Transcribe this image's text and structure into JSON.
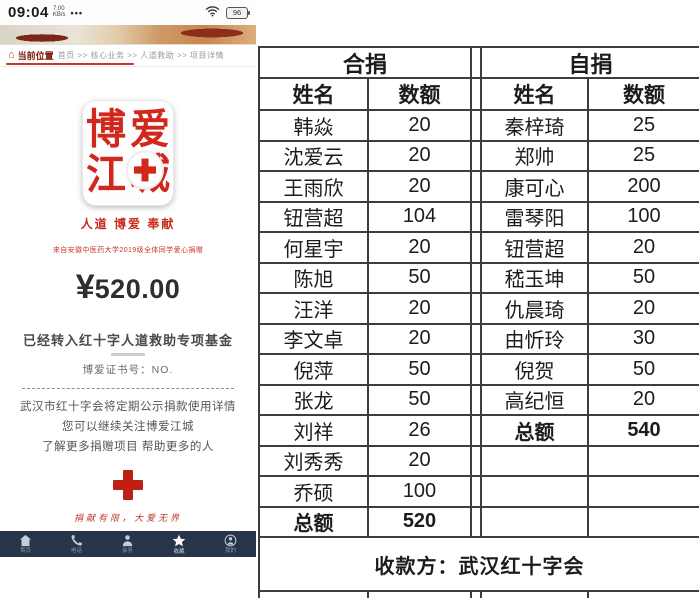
{
  "phone": {
    "status_bar": {
      "time": "09:04",
      "net_speed": "7.00",
      "net_unit": "KB/s",
      "dots": "•••",
      "battery_percent": "96"
    },
    "breadcrumb": {
      "home_icon": "house-icon",
      "label": "当前位置",
      "path": "首页 >> 核心业务 >> 人道救助 >> 项目详情"
    },
    "logo": {
      "chars": [
        "博",
        "爱",
        "江",
        "城"
      ],
      "center_icon": "red-cross-icon",
      "red": "#d0281c"
    },
    "slogan": "人道 博爱 奉献",
    "subnote": "来自安徽中医药大学2019级全体同学爱心捐赠",
    "amount": {
      "currency": "¥",
      "value": "520.00"
    },
    "fund_line": "已经转入红十字人道救助专项基金",
    "cert_line": "博爱证书号：NO.",
    "info_lines": [
      "武汉市红十字会将定期公示捐款使用详情",
      "您可以继续关注博爱江城",
      "了解更多捐赠项目 帮助更多的人"
    ],
    "footer_slogan": "捐献有限，大爱无界",
    "tabbar": [
      {
        "icon": "home-icon",
        "label": "首页",
        "active": false
      },
      {
        "icon": "phone-icon",
        "label": "电话",
        "active": false
      },
      {
        "icon": "user-icon",
        "label": "会务",
        "active": false
      },
      {
        "icon": "star-icon",
        "label": "收藏",
        "active": true
      },
      {
        "icon": "profile-icon",
        "label": "我的",
        "active": false
      }
    ],
    "accent_red": "#c0392b",
    "tabbar_color": "#273449"
  },
  "table": {
    "left": {
      "title": "合捐",
      "headers": [
        "姓名",
        "数额"
      ],
      "rows": [
        [
          "韩焱",
          "20"
        ],
        [
          "沈爱云",
          "20"
        ],
        [
          "王雨欣",
          "20"
        ],
        [
          "钮营超",
          "104"
        ],
        [
          "何星宇",
          "20"
        ],
        [
          "陈旭",
          "50"
        ],
        [
          "汪洋",
          "20"
        ],
        [
          "李文卓",
          "20"
        ],
        [
          "倪萍",
          "50"
        ],
        [
          "张龙",
          "50"
        ],
        [
          "刘祥",
          "26"
        ],
        [
          "刘秀秀",
          "20"
        ],
        [
          "乔硕",
          "100"
        ],
        [
          "总额",
          "520"
        ]
      ]
    },
    "right": {
      "title": "自捐",
      "headers": [
        "姓名",
        "数额"
      ],
      "rows": [
        [
          "秦梓琦",
          "25"
        ],
        [
          "郑帅",
          "25"
        ],
        [
          "康可心",
          "200"
        ],
        [
          "雷琴阳",
          "100"
        ],
        [
          "钮营超",
          "20"
        ],
        [
          "嵇玉坤",
          "50"
        ],
        [
          "仇晨琦",
          "20"
        ],
        [
          "由忻玲",
          "30"
        ],
        [
          "倪贺",
          "50"
        ],
        [
          "高纪恒",
          "20"
        ],
        [
          "总额",
          "540"
        ],
        [
          "",
          ""
        ],
        [
          "",
          ""
        ],
        [
          "",
          ""
        ]
      ]
    },
    "footer": "收款方：武汉红十字会",
    "border_color": "#3d3d3d"
  }
}
